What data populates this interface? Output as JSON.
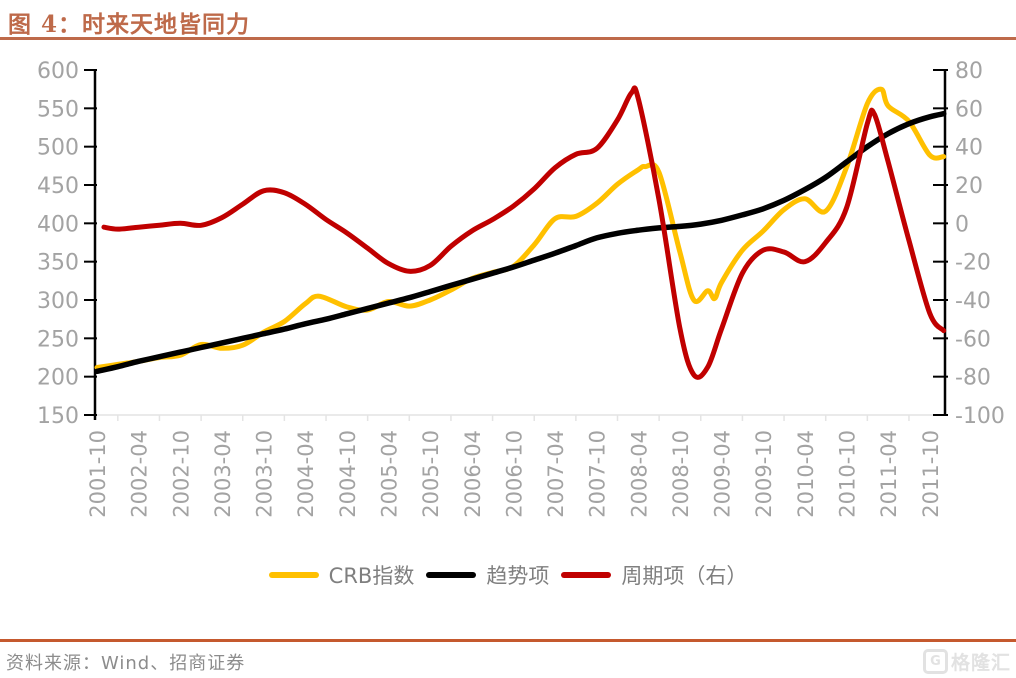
{
  "header": {
    "title": "图 4：时来天地皆同力"
  },
  "footer": {
    "source": "资料来源：Wind、招商证券",
    "logo_icon": "G",
    "logo_text": "格隆汇"
  },
  "colors": {
    "accent": "#BE6A4A",
    "footer_line": "#C5592E",
    "axis_label": "#A3A3A3",
    "axis_line": "#000000",
    "x_axis_line": "#E4E4E4",
    "legend_text": "#7F7F7F",
    "source_text": "#8C8C8C",
    "logo": "#E2E2E2",
    "crb": "#FFC000",
    "trend": "#000000",
    "cycle": "#C00000"
  },
  "chart_data": {
    "type": "line",
    "title": "时来天地皆同力",
    "legend_position": "bottom",
    "grid": false,
    "x_tick_labels": [
      "2001-10",
      "2002-04",
      "2002-10",
      "2003-04",
      "2003-10",
      "2004-04",
      "2004-10",
      "2005-04",
      "2005-10",
      "2006-04",
      "2006-10",
      "2007-04",
      "2007-10",
      "2008-04",
      "2008-10",
      "2009-04",
      "2009-10",
      "2010-04",
      "2010-10",
      "2011-04",
      "2011-10"
    ],
    "left_axis": {
      "min": 150,
      "max": 600,
      "step": 50,
      "ticks": [
        600,
        550,
        500,
        450,
        400,
        350,
        300,
        250,
        200,
        150
      ]
    },
    "right_axis": {
      "min": -100,
      "max": 80,
      "step": 20,
      "ticks": [
        80,
        60,
        40,
        20,
        0,
        -20,
        -40,
        -60,
        -80,
        -100
      ]
    },
    "series": [
      {
        "name": "CRB指数",
        "axis": "left",
        "color": "#FFC000",
        "points": [
          [
            "2001-10",
            212
          ],
          [
            "2002-01",
            216
          ],
          [
            "2002-04",
            220
          ],
          [
            "2002-07",
            225
          ],
          [
            "2002-10",
            228
          ],
          [
            "2003-01",
            242
          ],
          [
            "2003-04",
            237
          ],
          [
            "2003-07",
            241
          ],
          [
            "2003-10",
            258
          ],
          [
            "2004-01",
            272
          ],
          [
            "2004-04",
            295
          ],
          [
            "2004-06",
            305
          ],
          [
            "2004-10",
            291
          ],
          [
            "2005-01",
            287
          ],
          [
            "2005-04",
            298
          ],
          [
            "2005-07",
            292
          ],
          [
            "2005-10",
            300
          ],
          [
            "2006-01",
            313
          ],
          [
            "2006-04",
            328
          ],
          [
            "2006-07",
            336
          ],
          [
            "2006-10",
            344
          ],
          [
            "2007-01",
            372
          ],
          [
            "2007-04",
            406
          ],
          [
            "2007-07",
            409
          ],
          [
            "2007-10",
            426
          ],
          [
            "2008-01",
            451
          ],
          [
            "2008-04",
            470
          ],
          [
            "2008-05",
            474
          ],
          [
            "2008-07",
            466
          ],
          [
            "2008-10",
            362
          ],
          [
            "2008-12",
            300
          ],
          [
            "2009-02",
            312
          ],
          [
            "2009-03",
            302
          ],
          [
            "2009-04",
            323
          ],
          [
            "2009-07",
            365
          ],
          [
            "2009-10",
            390
          ],
          [
            "2010-01",
            418
          ],
          [
            "2010-04",
            432
          ],
          [
            "2010-07",
            416
          ],
          [
            "2010-10",
            473
          ],
          [
            "2011-01",
            556
          ],
          [
            "2011-03",
            575
          ],
          [
            "2011-04",
            553
          ],
          [
            "2011-07",
            533
          ],
          [
            "2011-10",
            489
          ],
          [
            "2011-12",
            487
          ]
        ]
      },
      {
        "name": "趋势项",
        "axis": "left",
        "color": "#000000",
        "points": [
          [
            "2001-10",
            207
          ],
          [
            "2002-01",
            213
          ],
          [
            "2002-04",
            220
          ],
          [
            "2002-07",
            226
          ],
          [
            "2002-10",
            232
          ],
          [
            "2003-01",
            238
          ],
          [
            "2003-04",
            244
          ],
          [
            "2003-07",
            250
          ],
          [
            "2003-10",
            256
          ],
          [
            "2004-01",
            262
          ],
          [
            "2004-04",
            269
          ],
          [
            "2004-07",
            275
          ],
          [
            "2004-10",
            282
          ],
          [
            "2005-01",
            289
          ],
          [
            "2005-04",
            296
          ],
          [
            "2005-07",
            303
          ],
          [
            "2005-10",
            311
          ],
          [
            "2006-01",
            319
          ],
          [
            "2006-04",
            327
          ],
          [
            "2006-07",
            335
          ],
          [
            "2006-10",
            343
          ],
          [
            "2007-01",
            352
          ],
          [
            "2007-04",
            361
          ],
          [
            "2007-07",
            371
          ],
          [
            "2007-10",
            381
          ],
          [
            "2008-01",
            387
          ],
          [
            "2008-04",
            391
          ],
          [
            "2008-07",
            394
          ],
          [
            "2008-10",
            396
          ],
          [
            "2009-01",
            399
          ],
          [
            "2009-04",
            404
          ],
          [
            "2009-07",
            411
          ],
          [
            "2009-10",
            419
          ],
          [
            "2010-01",
            430
          ],
          [
            "2010-04",
            444
          ],
          [
            "2010-07",
            460
          ],
          [
            "2010-10",
            480
          ],
          [
            "2011-01",
            500
          ],
          [
            "2011-04",
            517
          ],
          [
            "2011-07",
            530
          ],
          [
            "2011-10",
            539
          ],
          [
            "2011-12",
            543
          ]
        ]
      },
      {
        "name": "周期项（右）",
        "axis": "right",
        "color": "#C00000",
        "points": [
          [
            "2001-11",
            -2
          ],
          [
            "2002-01",
            -3
          ],
          [
            "2002-04",
            -2
          ],
          [
            "2002-07",
            -1
          ],
          [
            "2002-10",
            0
          ],
          [
            "2003-01",
            -1
          ],
          [
            "2003-04",
            3
          ],
          [
            "2003-07",
            10
          ],
          [
            "2003-10",
            17
          ],
          [
            "2004-01",
            16
          ],
          [
            "2004-04",
            10
          ],
          [
            "2004-07",
            2
          ],
          [
            "2004-10",
            -5
          ],
          [
            "2005-01",
            -13
          ],
          [
            "2005-04",
            -21
          ],
          [
            "2005-07",
            -25
          ],
          [
            "2005-10",
            -22
          ],
          [
            "2006-01",
            -12
          ],
          [
            "2006-04",
            -4
          ],
          [
            "2006-07",
            2
          ],
          [
            "2006-10",
            9
          ],
          [
            "2007-01",
            18
          ],
          [
            "2007-04",
            29
          ],
          [
            "2007-07",
            36
          ],
          [
            "2007-10",
            39
          ],
          [
            "2008-01",
            54
          ],
          [
            "2008-03",
            68
          ],
          [
            "2008-04",
            65
          ],
          [
            "2008-07",
            12
          ],
          [
            "2008-10",
            -55
          ],
          [
            "2008-12",
            -79
          ],
          [
            "2009-02",
            -75
          ],
          [
            "2009-04",
            -55
          ],
          [
            "2009-07",
            -26
          ],
          [
            "2009-10",
            -14
          ],
          [
            "2010-01",
            -15
          ],
          [
            "2010-04",
            -20
          ],
          [
            "2010-07",
            -10
          ],
          [
            "2010-10",
            8
          ],
          [
            "2011-01",
            52
          ],
          [
            "2011-02",
            57
          ],
          [
            "2011-04",
            32
          ],
          [
            "2011-07",
            -9
          ],
          [
            "2011-10",
            -47
          ],
          [
            "2011-12",
            -56
          ]
        ]
      }
    ]
  }
}
